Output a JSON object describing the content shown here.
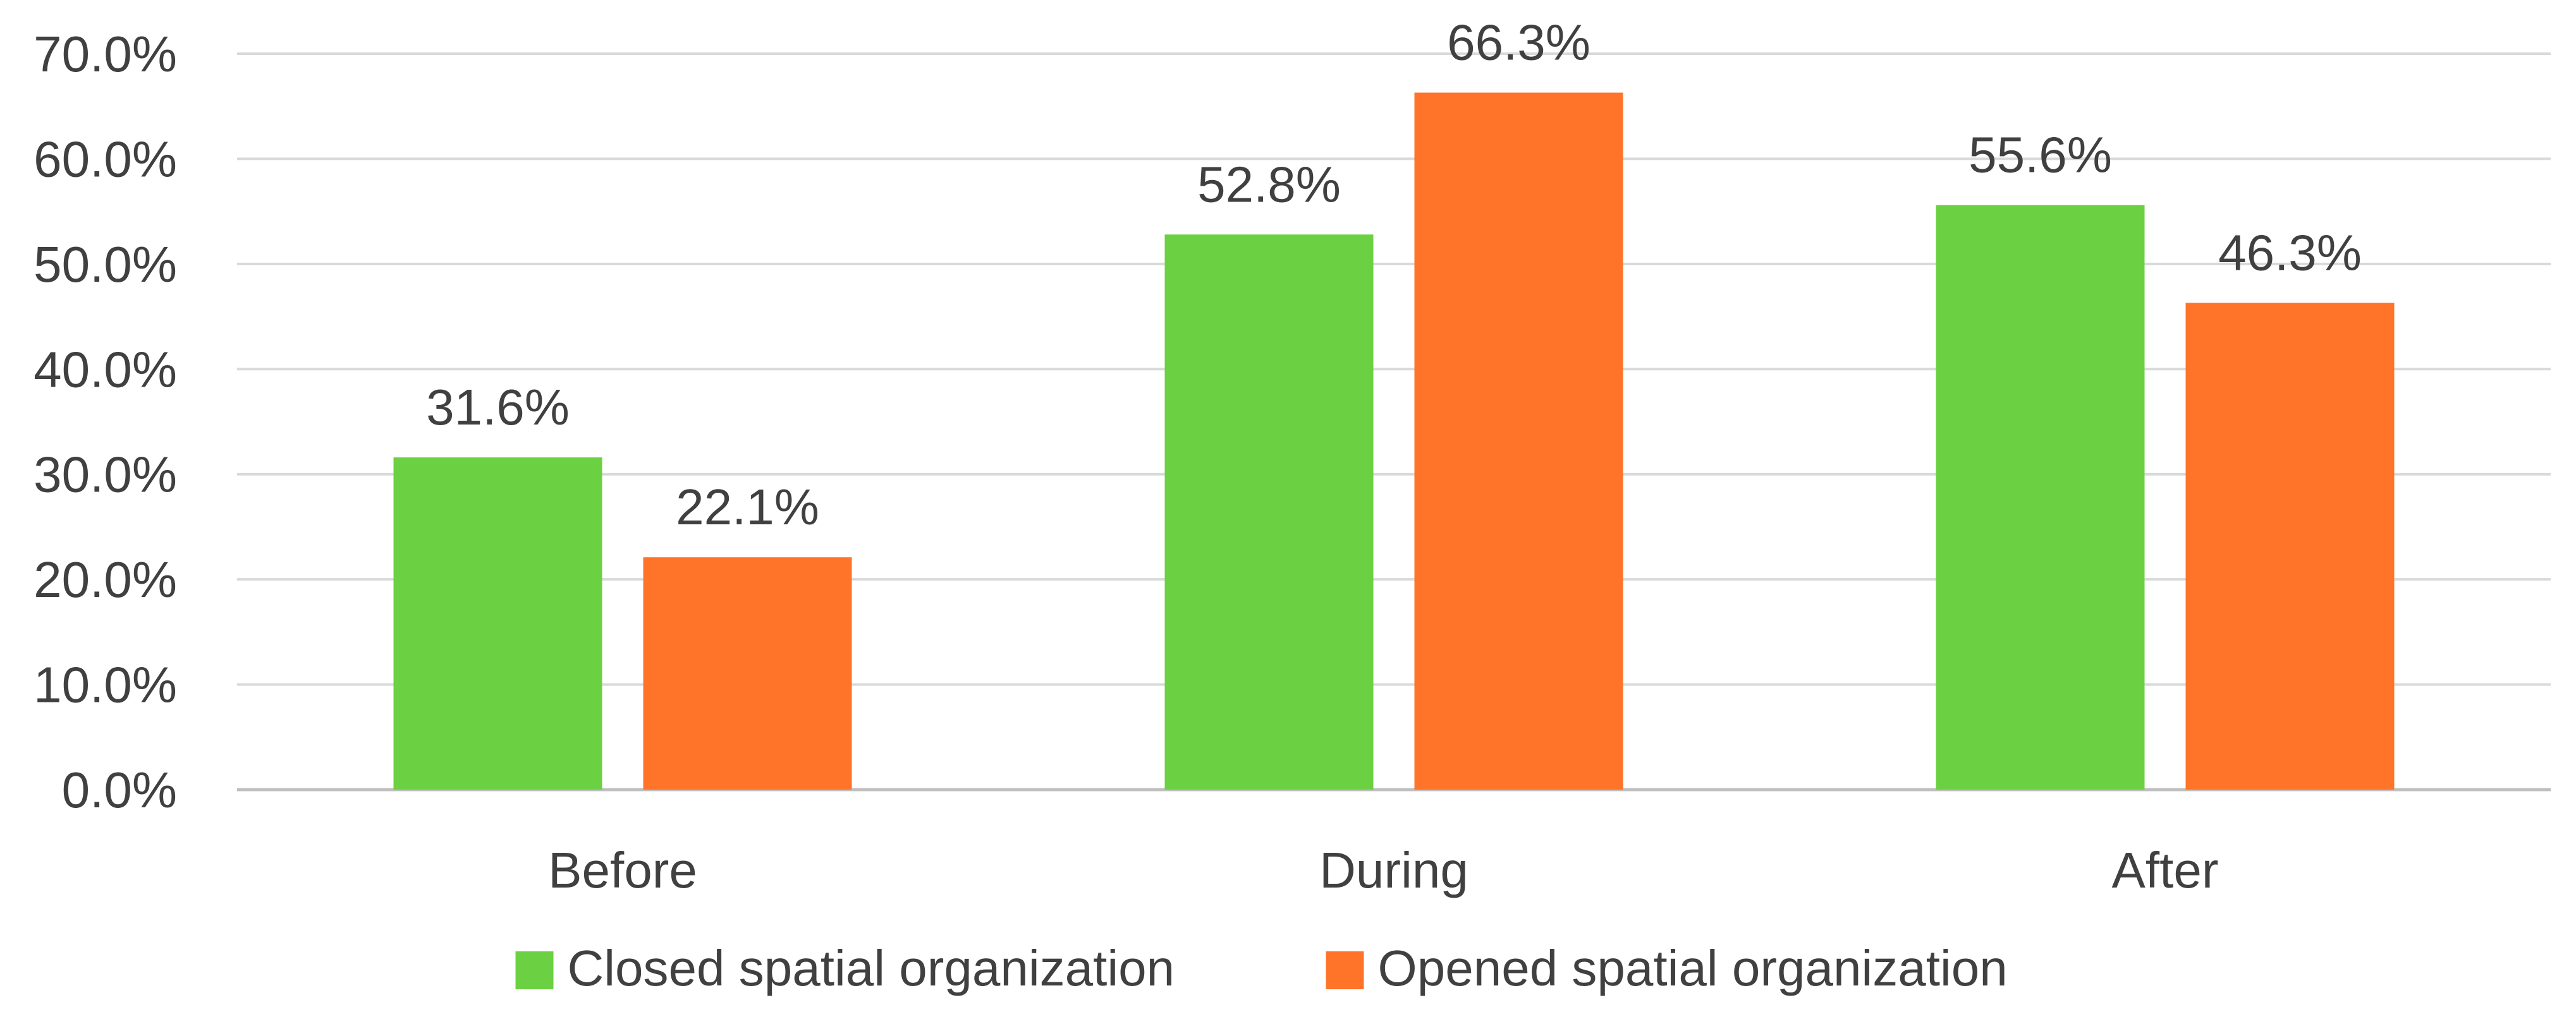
{
  "chart_data": {
    "type": "bar",
    "title": "",
    "xlabel": "",
    "ylabel": "",
    "categories": [
      "Before",
      "During",
      "After"
    ],
    "series": [
      {
        "name": "Closed spatial organization",
        "color": "#6BD142",
        "values": [
          31.6,
          52.8,
          55.6
        ],
        "labels": [
          "31.6%",
          "52.8%",
          "55.6%"
        ]
      },
      {
        "name": "Opened spatial organization",
        "color": "#FF7428",
        "values": [
          22.1,
          66.3,
          46.3
        ],
        "labels": [
          "22.1%",
          "66.3%",
          "46.3%"
        ]
      }
    ],
    "ylim": [
      0,
      70
    ],
    "yticks": [
      0,
      10,
      20,
      30,
      40,
      50,
      60,
      70
    ],
    "ytick_labels": [
      "0.0%",
      "10.0%",
      "20.0%",
      "30.0%",
      "40.0%",
      "50.0%",
      "60.0%",
      "70.0%"
    ],
    "grid": true,
    "legend_position": "bottom"
  }
}
